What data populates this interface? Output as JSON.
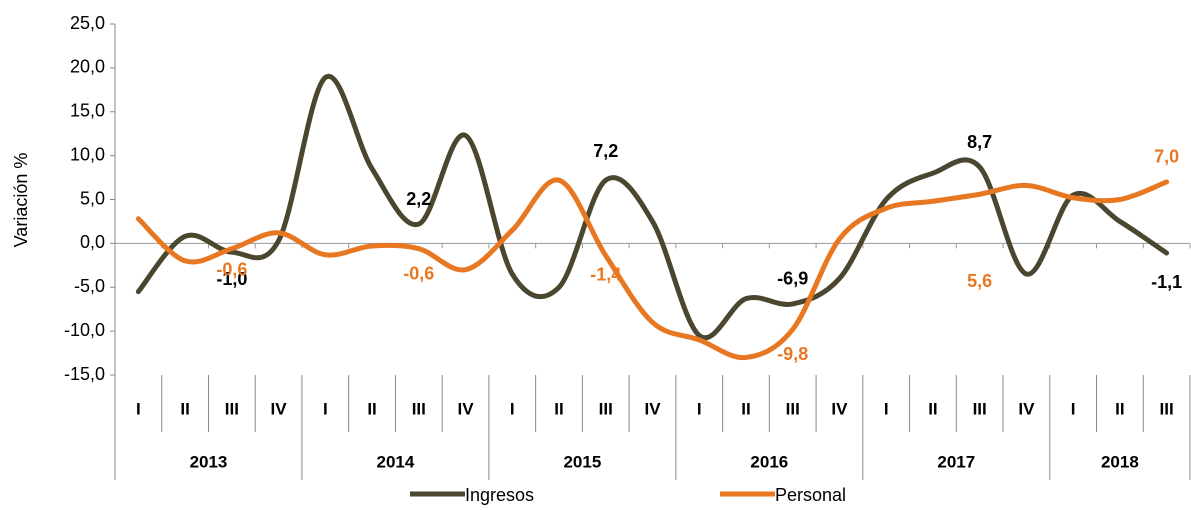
{
  "chart_data": {
    "type": "line",
    "y_label": "Variación %",
    "categories": [
      {
        "quarter": "I",
        "year": "2013"
      },
      {
        "quarter": "II",
        "year": "2013"
      },
      {
        "quarter": "III",
        "year": "2013"
      },
      {
        "quarter": "IV",
        "year": "2013"
      },
      {
        "quarter": "I",
        "year": "2014"
      },
      {
        "quarter": "II",
        "year": "2014"
      },
      {
        "quarter": "III",
        "year": "2014"
      },
      {
        "quarter": "IV",
        "year": "2014"
      },
      {
        "quarter": "I",
        "year": "2015"
      },
      {
        "quarter": "II",
        "year": "2015"
      },
      {
        "quarter": "III",
        "year": "2015"
      },
      {
        "quarter": "IV",
        "year": "2015"
      },
      {
        "quarter": "I",
        "year": "2016"
      },
      {
        "quarter": "II",
        "year": "2016"
      },
      {
        "quarter": "III",
        "year": "2016"
      },
      {
        "quarter": "IV",
        "year": "2016"
      },
      {
        "quarter": "I",
        "year": "2017"
      },
      {
        "quarter": "II",
        "year": "2017"
      },
      {
        "quarter": "III",
        "year": "2017"
      },
      {
        "quarter": "IV",
        "year": "2017"
      },
      {
        "quarter": "I",
        "year": "2018"
      },
      {
        "quarter": "II",
        "year": "2018"
      },
      {
        "quarter": "III",
        "year": "2018"
      }
    ],
    "series": [
      {
        "name": "Ingresos",
        "color": "#4a4630",
        "values": [
          -5.5,
          0.8,
          -1.0,
          0.3,
          18.9,
          8.5,
          2.2,
          12.3,
          -3.5,
          -5.0,
          7.2,
          2.5,
          -10.5,
          -6.3,
          -6.9,
          -4.0,
          5.0,
          8.0,
          8.7,
          -3.5,
          5.5,
          2.5,
          -1.1
        ],
        "value_labels": [
          null,
          null,
          "-1,0",
          null,
          null,
          null,
          "2,2",
          null,
          null,
          null,
          "7,2",
          null,
          null,
          null,
          "-6,9",
          null,
          null,
          null,
          "8,7",
          null,
          null,
          null,
          "-1,1"
        ]
      },
      {
        "name": "Personal",
        "color": "#e87722",
        "values": [
          2.8,
          -2.0,
          -0.6,
          1.2,
          -1.3,
          -0.3,
          -0.6,
          -3.0,
          1.5,
          7.2,
          -1.4,
          -9.0,
          -11.0,
          -13.0,
          -9.8,
          0.5,
          4.0,
          4.8,
          5.6,
          6.6,
          5.2,
          5.0,
          7.0
        ],
        "value_labels": [
          null,
          null,
          "-0,6",
          null,
          null,
          null,
          "-0,6",
          null,
          null,
          null,
          "-1,4",
          null,
          null,
          null,
          "-9,8",
          null,
          null,
          null,
          "5,6",
          null,
          null,
          null,
          "7,0"
        ]
      }
    ],
    "ylim": [
      -15,
      25
    ],
    "yticks": [
      {
        "value": -15,
        "label": "-15,0"
      },
      {
        "value": -10,
        "label": "-10,0"
      },
      {
        "value": -5,
        "label": "-5,0"
      },
      {
        "value": 0,
        "label": "0,0"
      },
      {
        "value": 5,
        "label": "5,0"
      },
      {
        "value": 10,
        "label": "10,0"
      },
      {
        "value": 15,
        "label": "15,0"
      },
      {
        "value": 20,
        "label": "20,0"
      },
      {
        "value": 25,
        "label": "25,0"
      }
    ],
    "legend": "bottom"
  }
}
